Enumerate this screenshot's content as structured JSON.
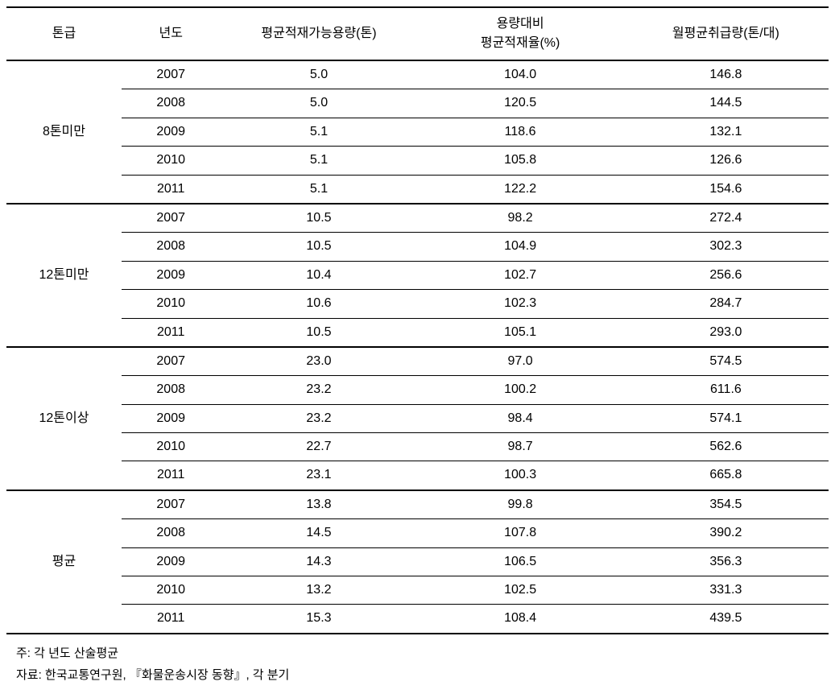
{
  "table": {
    "columns": [
      "톤급",
      "년도",
      "평균적재가능용량(톤)",
      "용량대비\n평균적재율(%)",
      "월평균취급량(톤/대)"
    ],
    "groups": [
      {
        "label": "8톤미만",
        "rows": [
          {
            "year": "2007",
            "capacity": "5.0",
            "loadrate": "104.0",
            "monthly": "146.8"
          },
          {
            "year": "2008",
            "capacity": "5.0",
            "loadrate": "120.5",
            "monthly": "144.5"
          },
          {
            "year": "2009",
            "capacity": "5.1",
            "loadrate": "118.6",
            "monthly": "132.1"
          },
          {
            "year": "2010",
            "capacity": "5.1",
            "loadrate": "105.8",
            "monthly": "126.6"
          },
          {
            "year": "2011",
            "capacity": "5.1",
            "loadrate": "122.2",
            "monthly": "154.6"
          }
        ]
      },
      {
        "label": "12톤미만",
        "rows": [
          {
            "year": "2007",
            "capacity": "10.5",
            "loadrate": "98.2",
            "monthly": "272.4"
          },
          {
            "year": "2008",
            "capacity": "10.5",
            "loadrate": "104.9",
            "monthly": "302.3"
          },
          {
            "year": "2009",
            "capacity": "10.4",
            "loadrate": "102.7",
            "monthly": "256.6"
          },
          {
            "year": "2010",
            "capacity": "10.6",
            "loadrate": "102.3",
            "monthly": "284.7"
          },
          {
            "year": "2011",
            "capacity": "10.5",
            "loadrate": "105.1",
            "monthly": "293.0"
          }
        ]
      },
      {
        "label": "12톤이상",
        "rows": [
          {
            "year": "2007",
            "capacity": "23.0",
            "loadrate": "97.0",
            "monthly": "574.5"
          },
          {
            "year": "2008",
            "capacity": "23.2",
            "loadrate": "100.2",
            "monthly": "611.6"
          },
          {
            "year": "2009",
            "capacity": "23.2",
            "loadrate": "98.4",
            "monthly": "574.1"
          },
          {
            "year": "2010",
            "capacity": "22.7",
            "loadrate": "98.7",
            "monthly": "562.6"
          },
          {
            "year": "2011",
            "capacity": "23.1",
            "loadrate": "100.3",
            "monthly": "665.8"
          }
        ]
      },
      {
        "label": "평균",
        "rows": [
          {
            "year": "2007",
            "capacity": "13.8",
            "loadrate": "99.8",
            "monthly": "354.5"
          },
          {
            "year": "2008",
            "capacity": "14.5",
            "loadrate": "107.8",
            "monthly": "390.2"
          },
          {
            "year": "2009",
            "capacity": "14.3",
            "loadrate": "106.5",
            "monthly": "356.3"
          },
          {
            "year": "2010",
            "capacity": "13.2",
            "loadrate": "102.5",
            "monthly": "331.3"
          },
          {
            "year": "2011",
            "capacity": "15.3",
            "loadrate": "108.4",
            "monthly": "439.5"
          }
        ]
      }
    ]
  },
  "footnotes": {
    "note1": "주: 각 년도 산술평균",
    "note2": "자료: 한국교통연구원, 『화물운송시장 동향』, 각 분기"
  }
}
